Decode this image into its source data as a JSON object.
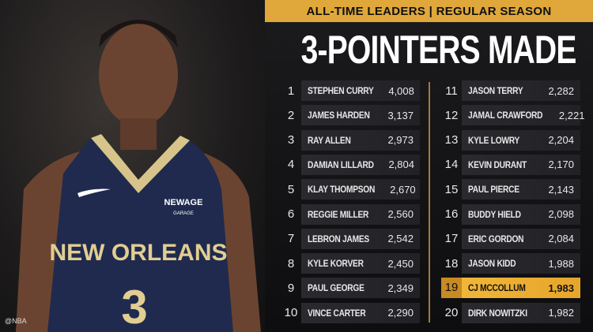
{
  "header": {
    "subtitle": "ALL-TIME LEADERS | REGULAR SEASON",
    "title": "3-POINTERS MADE"
  },
  "accent": "#e0a83a",
  "photo": {
    "jersey_text": "NEW ORLEANS",
    "jersey_number": "3",
    "sponsor": "NEWAGE",
    "sponsor_sub": "GARAGE",
    "watermark": "@NBA"
  },
  "leaders": [
    {
      "rank": "1",
      "name": "STEPHEN CURRY",
      "value": "4,008"
    },
    {
      "rank": "2",
      "name": "JAMES HARDEN",
      "value": "3,137"
    },
    {
      "rank": "3",
      "name": "RAY ALLEN",
      "value": "2,973"
    },
    {
      "rank": "4",
      "name": "DAMIAN LILLARD",
      "value": "2,804"
    },
    {
      "rank": "5",
      "name": "KLAY THOMPSON",
      "value": "2,670"
    },
    {
      "rank": "6",
      "name": "REGGIE MILLER",
      "value": "2,560"
    },
    {
      "rank": "7",
      "name": "LEBRON JAMES",
      "value": "2,542"
    },
    {
      "rank": "8",
      "name": "KYLE KORVER",
      "value": "2,450"
    },
    {
      "rank": "9",
      "name": "PAUL GEORGE",
      "value": "2,349"
    },
    {
      "rank": "10",
      "name": "VINCE CARTER",
      "value": "2,290"
    },
    {
      "rank": "11",
      "name": "JASON TERRY",
      "value": "2,282"
    },
    {
      "rank": "12",
      "name": "JAMAL CRAWFORD",
      "value": "2,221"
    },
    {
      "rank": "13",
      "name": "KYLE LOWRY",
      "value": "2,204"
    },
    {
      "rank": "14",
      "name": "KEVIN DURANT",
      "value": "2,170"
    },
    {
      "rank": "15",
      "name": "PAUL PIERCE",
      "value": "2,143"
    },
    {
      "rank": "16",
      "name": "BUDDY HIELD",
      "value": "2,098"
    },
    {
      "rank": "17",
      "name": "ERIC GORDON",
      "value": "2,084"
    },
    {
      "rank": "18",
      "name": "JASON KIDD",
      "value": "1,988"
    },
    {
      "rank": "19",
      "name": "CJ MCCOLLUM",
      "value": "1,983",
      "highlighted": true
    },
    {
      "rank": "20",
      "name": "DIRK NOWITZKI",
      "value": "1,982"
    }
  ]
}
